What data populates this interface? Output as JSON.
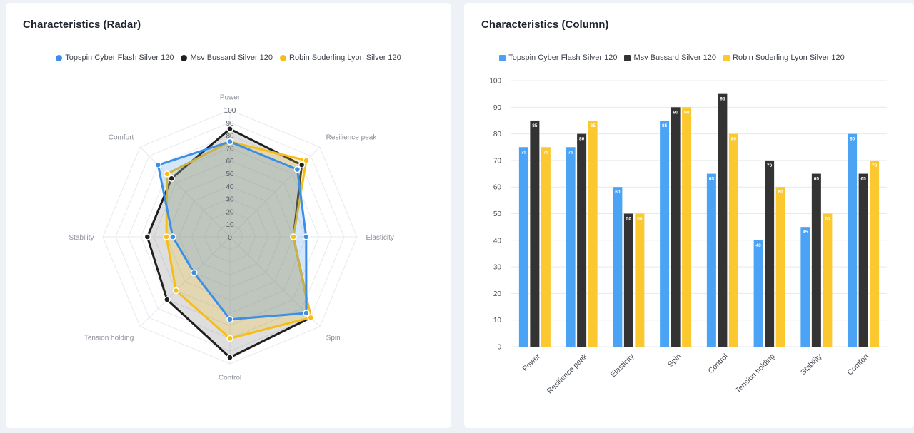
{
  "colors": {
    "series": [
      "#3d8fe6",
      "#1f1f1f",
      "#f6bd16"
    ],
    "grid": "#e6e9ef",
    "axis_text": "#8a8f99"
  },
  "chart_data": [
    {
      "type": "radar",
      "title": "Characteristics (Radar)",
      "legend": "top",
      "categories": [
        "Power",
        "Resilience peak",
        "Elasticity",
        "Spin",
        "Control",
        "Tension holding",
        "Stability",
        "Comfort"
      ],
      "scale_ticks": [
        "0",
        "10",
        "20",
        "30",
        "40",
        "50",
        "60",
        "70",
        "80",
        "90",
        "100"
      ],
      "range": [
        0,
        100
      ],
      "series": [
        {
          "name": "Topspin Cyber Flash Silver 120",
          "values": [
            75,
            75,
            60,
            85,
            65,
            40,
            45,
            80
          ]
        },
        {
          "name": "Msv Bussard Silver 120",
          "values": [
            85,
            80,
            50,
            90,
            95,
            70,
            65,
            65
          ]
        },
        {
          "name": "Robin Soderling Lyon Silver 120",
          "values": [
            75,
            85,
            50,
            90,
            80,
            60,
            50,
            70
          ]
        }
      ]
    },
    {
      "type": "bar",
      "title": "Characteristics (Column)",
      "legend": "top",
      "categories": [
        "Power",
        "Resilience peak",
        "Elasticity",
        "Spin",
        "Control",
        "Tension holding",
        "Stability",
        "Comfort"
      ],
      "y_ticks": [
        "0",
        "10",
        "20",
        "30",
        "40",
        "50",
        "60",
        "70",
        "80",
        "90",
        "100"
      ],
      "ylim": [
        0,
        100
      ],
      "grid": true,
      "series": [
        {
          "name": "Topspin Cyber Flash Silver 120",
          "values": [
            75,
            75,
            60,
            85,
            65,
            40,
            45,
            80
          ]
        },
        {
          "name": "Msv Bussard Silver 120",
          "values": [
            85,
            80,
            50,
            90,
            95,
            70,
            65,
            65
          ]
        },
        {
          "name": "Robin Soderling Lyon Silver 120",
          "values": [
            75,
            85,
            50,
            90,
            80,
            60,
            50,
            70
          ]
        }
      ]
    }
  ]
}
